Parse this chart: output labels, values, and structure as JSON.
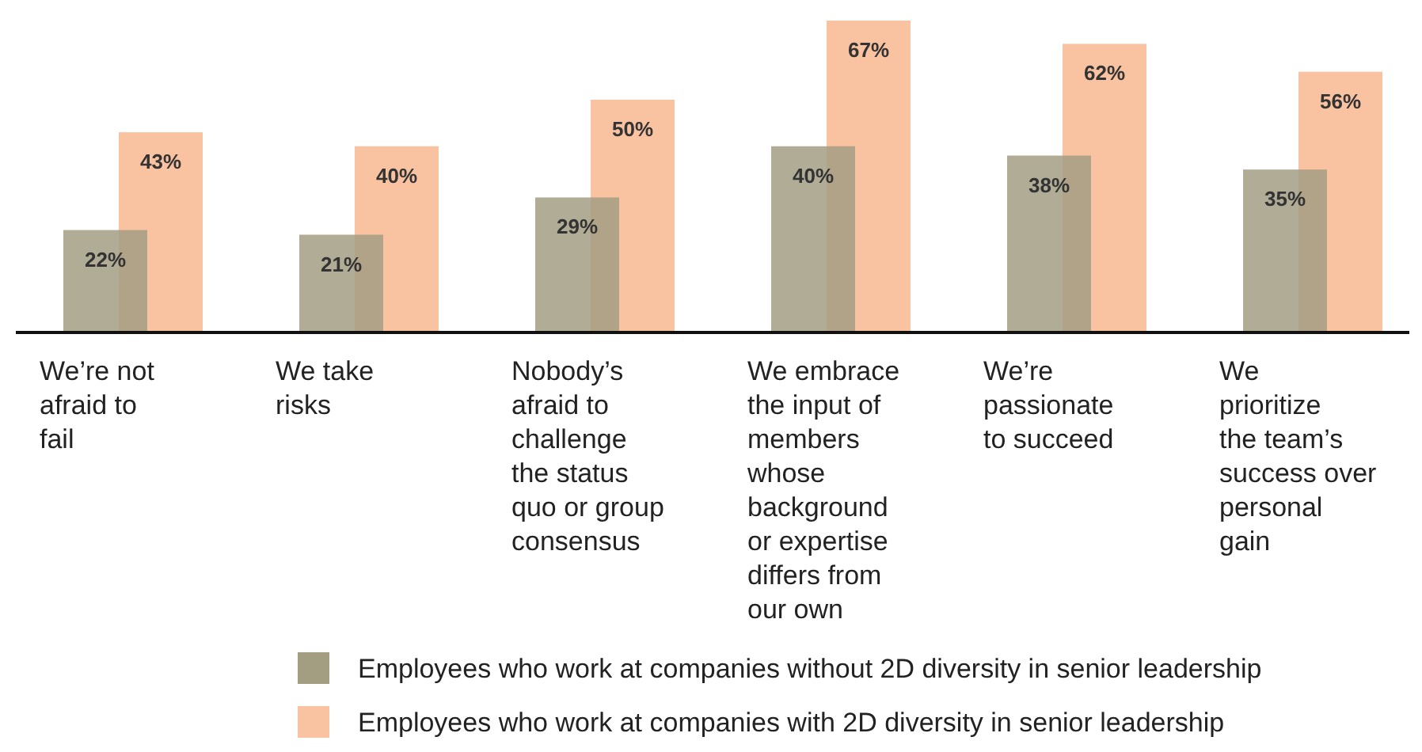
{
  "chart_data": {
    "type": "bar",
    "categories": [
      "We’re not afraid to fail",
      "We take risks",
      "Nobody’s afraid to challenge the status quo or group consensus",
      "We embrace the input of members whose background or expertise differs from our own",
      "We’re passionate to succeed",
      "We prioritize the team’s success over personal gain"
    ],
    "series": [
      {
        "name": "Employees who work at companies without 2D diversity in senior leadership",
        "color": "#a39e82",
        "values": [
          22,
          21,
          29,
          40,
          38,
          35
        ],
        "value_labels": [
          "22%",
          "21%",
          "29%",
          "40%",
          "38%",
          "35%"
        ]
      },
      {
        "name": "Employees who work at companies with 2D diversity in senior leadership",
        "color": "#f9c2a0",
        "values": [
          43,
          40,
          50,
          67,
          62,
          56
        ],
        "value_labels": [
          "43%",
          "40%",
          "50%",
          "67%",
          "62%",
          "56%"
        ]
      }
    ],
    "ylim": [
      0,
      67
    ],
    "legend": "bottom"
  }
}
